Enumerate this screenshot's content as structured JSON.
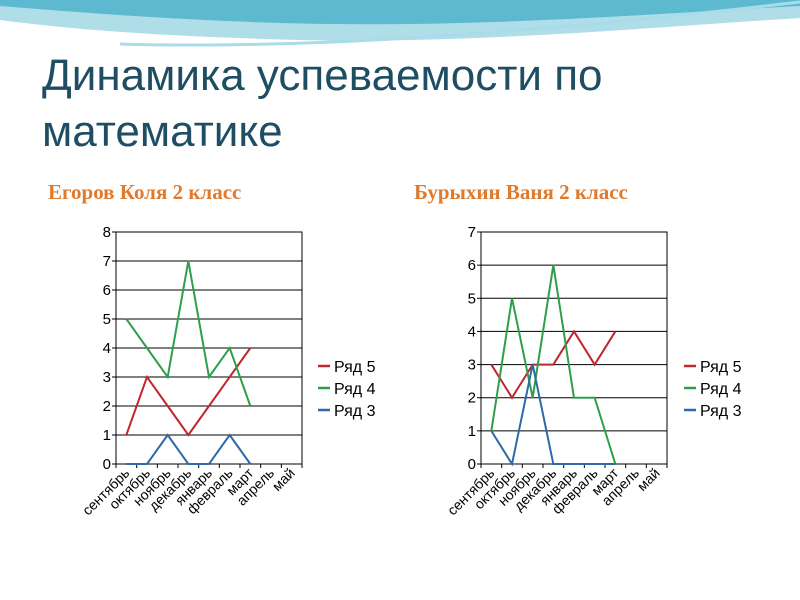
{
  "slide": {
    "title": "Динамика успеваемости по математике",
    "subtitles": [
      "Егоров Коля 2 класс",
      "Бурыхин Ваня 2 класс"
    ]
  },
  "colors": {
    "title": "#1f4e63",
    "subtitle": "#e07a2c",
    "series": [
      "#c0272d",
      "#2e9e4a",
      "#2f6aa8"
    ]
  },
  "chart_data": [
    {
      "type": "line",
      "title": "Егоров Коля 2 класс",
      "categories": [
        "сентябрь",
        "октябрь",
        "ноябрь",
        "декабрь",
        "январь",
        "февраль",
        "март",
        "апрель",
        "май"
      ],
      "ylim": [
        0,
        8
      ],
      "yticks": [
        0,
        1,
        2,
        3,
        4,
        5,
        6,
        7,
        8
      ],
      "grid": true,
      "legend": "right",
      "series": [
        {
          "name": "Ряд 5",
          "values": [
            1,
            3,
            2,
            1,
            2,
            3,
            4,
            null,
            null
          ]
        },
        {
          "name": "Ряд 4",
          "values": [
            5,
            4,
            3,
            7,
            3,
            4,
            2,
            null,
            null
          ]
        },
        {
          "name": "Ряд 3",
          "values": [
            0,
            0,
            1,
            0,
            0,
            1,
            0,
            null,
            null
          ]
        }
      ]
    },
    {
      "type": "line",
      "title": "Бурыхин Ваня 2 класс",
      "categories": [
        "сентябрь",
        "октябрь",
        "ноябрь",
        "декабрь",
        "январь",
        "февраль",
        "март",
        "апрель",
        "май"
      ],
      "ylim": [
        0,
        7
      ],
      "yticks": [
        0,
        1,
        2,
        3,
        4,
        5,
        6,
        7
      ],
      "grid": true,
      "legend": "right",
      "series": [
        {
          "name": "Ряд 5",
          "values": [
            3,
            2,
            3,
            3,
            4,
            3,
            4,
            null,
            null
          ]
        },
        {
          "name": "Ряд 4",
          "values": [
            1,
            5,
            2,
            6,
            2,
            2,
            0,
            null,
            null
          ]
        },
        {
          "name": "Ряд 3",
          "values": [
            1,
            0,
            3,
            0,
            0,
            0,
            0,
            null,
            null
          ]
        }
      ]
    }
  ]
}
